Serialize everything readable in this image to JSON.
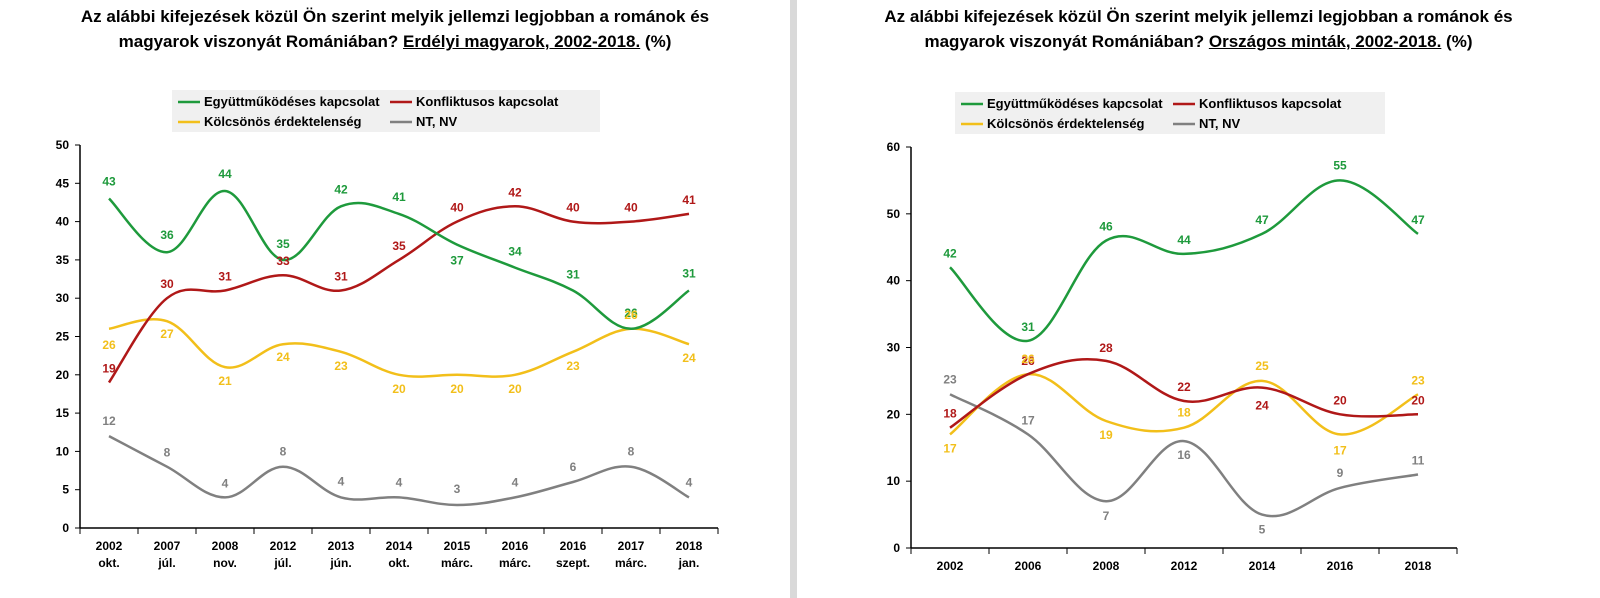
{
  "charts": [
    {
      "title_line1": "Az alábbi kifejezések közül Ön szerint melyik jellemzi legjobban a románok és",
      "title_line2_prefix": "magyarok viszonyát Romániában? ",
      "title_line2_underlined": "Erdélyi magyarok, 2002-2018.",
      "title_line2_suffix": " (%)"
    },
    {
      "title_line1": "Az alábbi kifejezések közül Ön szerint melyik jellemzi legjobban a románok és",
      "title_line2_prefix": "magyarok viszonyát Romániában? ",
      "title_line2_underlined": "Országos minták, 2002-2018.",
      "title_line2_suffix": " (%)"
    }
  ],
  "chart_data": [
    {
      "type": "line",
      "title": "Az alábbi kifejezések közül Ön szerint melyik jellemzi legjobban a románok és magyarok viszonyát Romániában? Erdélyi magyarok, 2002-2018. (%)",
      "categories": [
        [
          "2002",
          "okt."
        ],
        [
          "2007",
          "júl."
        ],
        [
          "2008",
          "nov."
        ],
        [
          "2012",
          "júl."
        ],
        [
          "2013",
          "jún."
        ],
        [
          "2014",
          "okt."
        ],
        [
          "2015",
          "márc."
        ],
        [
          "2016",
          "márc."
        ],
        [
          "2016",
          "szept."
        ],
        [
          "2017",
          "márc."
        ],
        [
          "2018",
          "jan."
        ]
      ],
      "ylim": [
        0,
        50
      ],
      "yticks": [
        0,
        5,
        10,
        15,
        20,
        25,
        30,
        35,
        40,
        45,
        50
      ],
      "grid": false,
      "legend_position": "top",
      "series": [
        {
          "name": "Együttműködéses kapcsolat",
          "color": "#1e9a3c",
          "values": [
            43,
            36,
            44,
            35,
            42,
            41,
            37,
            34,
            31,
            26,
            31
          ]
        },
        {
          "name": "Konfliktusos kapcsolat",
          "color": "#b01818",
          "values": [
            19,
            30,
            31,
            33,
            31,
            35,
            40,
            42,
            40,
            40,
            41
          ]
        },
        {
          "name": "Kölcsönös érdektelenség",
          "color": "#f2bf1a",
          "values": [
            26,
            27,
            21,
            24,
            23,
            20,
            20,
            20,
            23,
            26,
            24
          ]
        },
        {
          "name": "NT, NV",
          "color": "#808080",
          "values": [
            12,
            8,
            4,
            8,
            4,
            4,
            3,
            4,
            6,
            8,
            4
          ]
        }
      ]
    },
    {
      "type": "line",
      "title": "Az alábbi kifejezések közül Ön szerint melyik jellemzi legjobban a románok és magyarok viszonyát Romániában? Országos minták, 2002-2018. (%)",
      "categories": [
        [
          "2002"
        ],
        [
          "2006"
        ],
        [
          "2008"
        ],
        [
          "2012"
        ],
        [
          "2014"
        ],
        [
          "2016"
        ],
        [
          "2018"
        ]
      ],
      "ylim": [
        0,
        60
      ],
      "yticks": [
        0,
        10,
        20,
        30,
        40,
        50,
        60
      ],
      "grid": false,
      "legend_position": "top",
      "series": [
        {
          "name": "Együttműködéses kapcsolat",
          "color": "#1e9a3c",
          "values": [
            42,
            31,
            46,
            44,
            47,
            55,
            47
          ]
        },
        {
          "name": "Konfliktusos kapcsolat",
          "color": "#b01818",
          "values": [
            18,
            26,
            28,
            22,
            24,
            20,
            20
          ]
        },
        {
          "name": "Kölcsönös érdektelenség",
          "color": "#f2bf1a",
          "values": [
            17,
            26,
            19,
            18,
            25,
            17,
            23
          ]
        },
        {
          "name": "NT, NV",
          "color": "#808080",
          "values": [
            23,
            17,
            7,
            16,
            5,
            9,
            11
          ]
        }
      ]
    }
  ]
}
